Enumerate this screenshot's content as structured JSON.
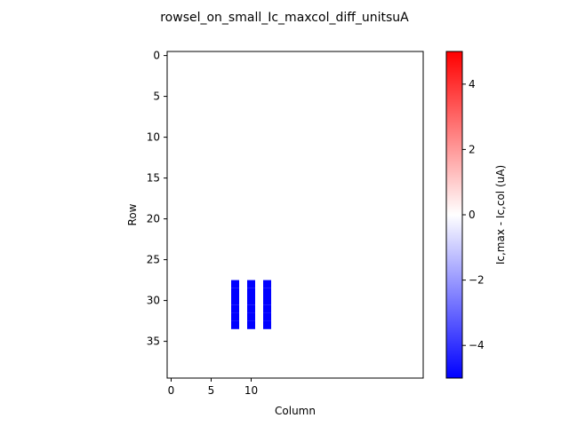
{
  "chart_data": {
    "type": "heatmap",
    "title": "rowsel_on_small_Ic_maxcol_diff_unitsuA",
    "xlabel": "Column",
    "ylabel": "Row",
    "x_ticks": [
      0,
      5,
      10
    ],
    "y_ticks": [
      0,
      5,
      10,
      15,
      20,
      25,
      30,
      35
    ],
    "xlim": [
      -0.5,
      31.5
    ],
    "ylim": [
      39.5,
      -0.5
    ],
    "colormap": "bwr",
    "vmin": -5,
    "vmax": 5,
    "background_value": 0,
    "colorbar_label": "Ic,max - Ic,col (uA)",
    "colorbar_ticks": [
      -4,
      -2,
      0,
      2,
      4
    ],
    "cells": [
      {
        "row": 28,
        "col": 8,
        "value": -5
      },
      {
        "row": 29,
        "col": 8,
        "value": -5
      },
      {
        "row": 30,
        "col": 8,
        "value": -5
      },
      {
        "row": 31,
        "col": 8,
        "value": -5
      },
      {
        "row": 32,
        "col": 8,
        "value": -5
      },
      {
        "row": 33,
        "col": 8,
        "value": -5
      },
      {
        "row": 28,
        "col": 10,
        "value": -5
      },
      {
        "row": 29,
        "col": 10,
        "value": -5
      },
      {
        "row": 30,
        "col": 10,
        "value": -5
      },
      {
        "row": 31,
        "col": 10,
        "value": -5
      },
      {
        "row": 32,
        "col": 10,
        "value": -5
      },
      {
        "row": 33,
        "col": 10,
        "value": -5
      },
      {
        "row": 28,
        "col": 12,
        "value": -5
      },
      {
        "row": 29,
        "col": 12,
        "value": -5
      },
      {
        "row": 30,
        "col": 12,
        "value": -5
      },
      {
        "row": 31,
        "col": 12,
        "value": -5
      },
      {
        "row": 32,
        "col": 12,
        "value": -5
      },
      {
        "row": 33,
        "col": 12,
        "value": -5
      }
    ]
  }
}
